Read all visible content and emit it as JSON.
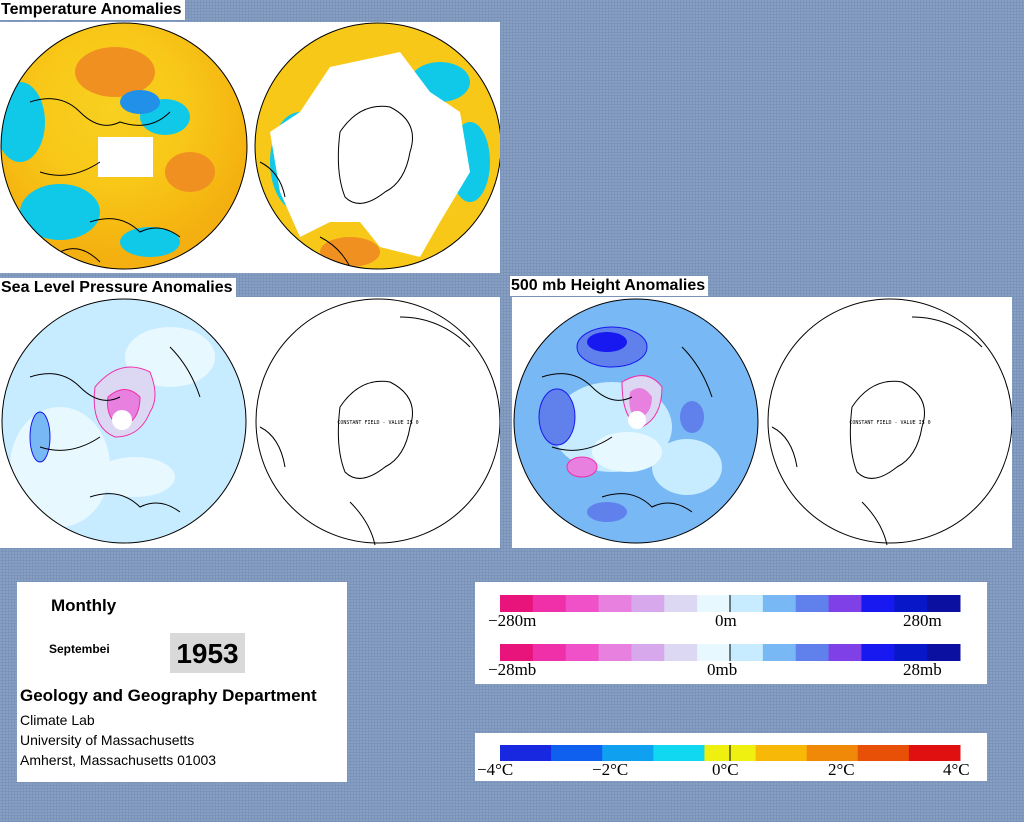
{
  "titles": {
    "temperature": "Temperature Anomalies",
    "slp": "Sea Level Pressure Anomalies",
    "height500": "500 mb Height Anomalies"
  },
  "constant_field_label": "CONSTANT FIELD - VALUE IS 0",
  "info": {
    "period": "Monthly",
    "month": "Septembei",
    "year": "1953",
    "department": "Geology and Geography Department",
    "line1": "Climate Lab",
    "line2": "University of Massachusetts",
    "line3": "Amherst, Massachusetts 01003"
  },
  "legend_height": {
    "min": "−280m",
    "mid": "0m",
    "max": "280m",
    "colors": [
      "#e8147c",
      "#f030a8",
      "#f050c8",
      "#e880e0",
      "#d8a8ec",
      "#dcd8f4",
      "#e8f8ff",
      "#c8ecff",
      "#78b8f4",
      "#6080ec",
      "#8040e8",
      "#1818f0",
      "#0818c8",
      "#0c10a0"
    ]
  },
  "legend_pressure": {
    "min": "−28mb",
    "mid": "0mb",
    "max": "28mb"
  },
  "legend_temp": {
    "min": "−4°C",
    "m2": "−2°C",
    "zero": "0°C",
    "p2": "2°C",
    "max": "4°C",
    "colors": [
      "#1828e0",
      "#1060f0",
      "#10a0f0",
      "#10d8f0",
      "#f0f010",
      "#f8b808",
      "#f08808",
      "#e85008",
      "#e01010"
    ]
  }
}
